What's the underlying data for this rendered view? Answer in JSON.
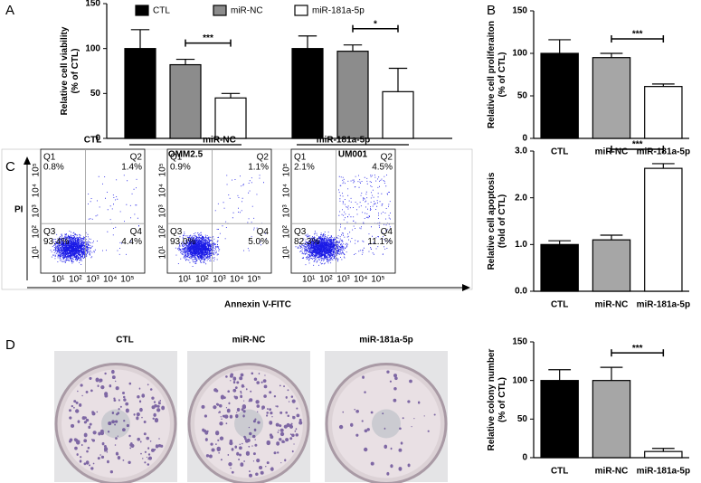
{
  "panels": [
    "A",
    "B",
    "C",
    "D"
  ],
  "chart_data": [
    {
      "type": "grouped-bar",
      "ylabel": "Relative cell viability (% of CTL)",
      "categories": [
        "OMM2.5",
        "UM001"
      ],
      "series": [
        {
          "name": "CTL",
          "color": "#000000",
          "values": [
            100,
            100
          ],
          "errors": [
            21,
            14
          ]
        },
        {
          "name": "miR-NC",
          "color": "#8c8c8c",
          "values": [
            82,
            97
          ],
          "errors": [
            6,
            7
          ]
        },
        {
          "name": "miR-181a-5p",
          "color": "#ffffff",
          "values": [
            45,
            52
          ],
          "errors": [
            5,
            26
          ]
        }
      ],
      "ylim": [
        0,
        150
      ],
      "yticks": [
        0,
        50,
        100,
        150
      ],
      "annotations": [
        "***",
        "*"
      ]
    },
    {
      "type": "bar",
      "ylabel": "Relative cell proliferaiton (% of CTL)",
      "categories": [
        "CTL",
        "miR-NC",
        "miR-181a-5p"
      ],
      "values": [
        100,
        95,
        61
      ],
      "errors": [
        16,
        5,
        3
      ],
      "colors": [
        "#000000",
        "#a6a6a6",
        "#ffffff"
      ],
      "ylim": [
        0,
        150
      ],
      "yticks": [
        0,
        50,
        100,
        150
      ],
      "annotations": [
        "***"
      ]
    },
    {
      "type": "bar",
      "ylabel": "Relative cell apoptosis (fold of CTL)",
      "categories": [
        "CTL",
        "miR-NC",
        "miR-181a-5p"
      ],
      "values": [
        1.0,
        1.1,
        2.63
      ],
      "errors": [
        0.08,
        0.1,
        0.1
      ],
      "colors": [
        "#000000",
        "#a6a6a6",
        "#ffffff"
      ],
      "ylim": [
        0,
        3
      ],
      "yticks": [
        {
          "value": 0,
          "label": "0.0"
        },
        {
          "value": 1,
          "label": "1.0"
        },
        {
          "value": 2,
          "label": "2.0"
        },
        {
          "value": 3,
          "label": "3.0"
        }
      ],
      "annotations": [
        "***"
      ]
    },
    {
      "type": "bar",
      "ylabel": "Relative colony number (% of CTL)",
      "categories": [
        "CTL",
        "miR-NC",
        "miR-181a-5p"
      ],
      "values": [
        100,
        100,
        8
      ],
      "errors": [
        14,
        17,
        4
      ],
      "colors": [
        "#000000",
        "#a6a6a6",
        "#ffffff"
      ],
      "ylim": [
        0,
        150
      ],
      "yticks": [
        0,
        50,
        100,
        150
      ],
      "annotations": [
        "***"
      ]
    }
  ],
  "flow": {
    "xlabel": "Annexin V-FITC",
    "ylabel": "PI",
    "ticks": [
      "10⁰",
      "10¹",
      "10²",
      "10³",
      "10⁴",
      "10⁵"
    ],
    "plots": [
      {
        "title": "CTL",
        "quadrants": [
          [
            "Q1",
            "0.8%"
          ],
          [
            "Q2",
            "1.4%"
          ],
          [
            "Q3",
            "93.4%"
          ],
          [
            "Q4",
            "4.4%"
          ]
        ]
      },
      {
        "title": "miR-NC",
        "quadrants": [
          [
            "Q1",
            "0.9%"
          ],
          [
            "Q2",
            "1.1%"
          ],
          [
            "Q3",
            "93.0%"
          ],
          [
            "Q4",
            "5.0%"
          ]
        ]
      },
      {
        "title": "miR-181a-5p",
        "quadrants": [
          [
            "Q1",
            "2.1%"
          ],
          [
            "Q2",
            "4.5%"
          ],
          [
            "Q3",
            "82.3%"
          ],
          [
            "Q4",
            "11.1%"
          ]
        ]
      }
    ]
  },
  "colony": {
    "titles": [
      "CTL",
      "miR-NC",
      "miR-181a-5p"
    ]
  }
}
